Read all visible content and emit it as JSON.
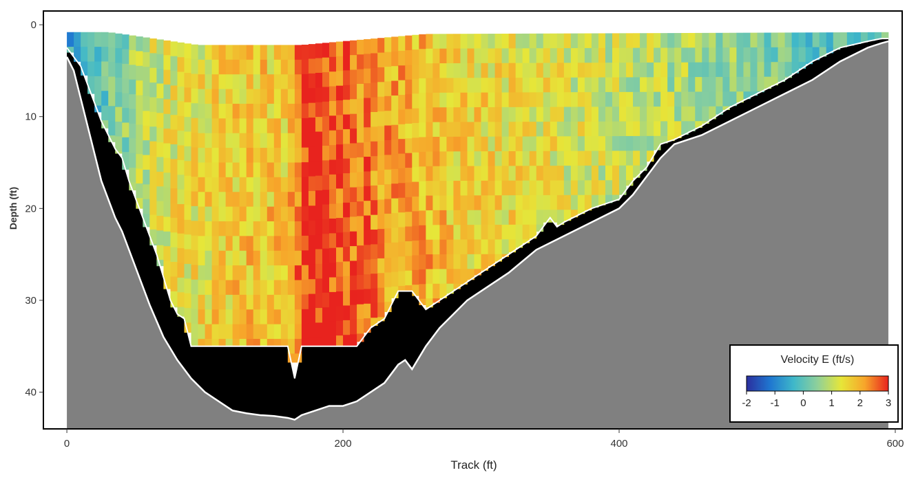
{
  "chart_data": {
    "type": "heatmap",
    "title": "",
    "xlabel": "Track (ft)",
    "ylabel": "Depth (ft)",
    "xlim": [
      -17,
      605
    ],
    "ylim_reversed": [
      -1.5,
      44
    ],
    "y_axis_reversed": true,
    "x_ticks": [
      0,
      200,
      400,
      600
    ],
    "y_ticks": [
      0,
      10,
      20,
      30,
      40
    ],
    "x_tick_labels": [
      "0",
      "200",
      "400",
      "600"
    ],
    "y_tick_labels": [
      "0",
      "10",
      "20",
      "30",
      "40"
    ],
    "grid": false,
    "colorbar": {
      "title": "Velocity E (ft/s)",
      "min": -2,
      "max": 3,
      "ticks": [
        -2,
        -1,
        0,
        1,
        2,
        3
      ],
      "tick_labels": [
        "-2",
        "-1",
        "0",
        "1",
        "2",
        "3"
      ],
      "colors": [
        "#2b2f9e",
        "#1f77d0",
        "#3fb8c9",
        "#8fd09a",
        "#e6e639",
        "#f7a52a",
        "#e8231e"
      ],
      "placement": "bottom-right"
    },
    "colors": {
      "riverbed": "#808080",
      "unmeasured_zone": "#000000",
      "bed_line": "#ffffff",
      "frame": "#000000"
    },
    "velocity_profile": {
      "description_units": "mean eastward velocity (ft/s) by track position",
      "x": [
        0,
        20,
        40,
        60,
        80,
        100,
        120,
        140,
        160,
        170,
        180,
        200,
        220,
        240,
        260,
        280,
        300,
        320,
        340,
        360,
        380,
        400,
        420,
        440,
        460,
        480,
        500,
        520,
        540,
        560,
        580,
        590
      ],
      "values": [
        -0.5,
        -0.2,
        0.4,
        1.0,
        1.3,
        1.4,
        1.6,
        1.7,
        1.6,
        2.7,
        2.9,
        2.6,
        2.3,
        2.0,
        1.9,
        1.6,
        1.5,
        1.4,
        1.3,
        1.2,
        1.1,
        1.0,
        0.9,
        0.8,
        0.7,
        0.6,
        0.4,
        0.2,
        0.0,
        -0.2,
        0.2,
        0.4
      ]
    },
    "measured_bottom": {
      "x": [
        0,
        5,
        10,
        15,
        20,
        25,
        30,
        35,
        40,
        45,
        50,
        55,
        60,
        65,
        70,
        75,
        80,
        85,
        90,
        95,
        100,
        110,
        120,
        130,
        140,
        150,
        160,
        165,
        170,
        175,
        180,
        190,
        200,
        210,
        220,
        230,
        240,
        250,
        260,
        270,
        280,
        290,
        300,
        310,
        320,
        330,
        340,
        350,
        355,
        360,
        380,
        400,
        410,
        420,
        430,
        440,
        460,
        480,
        500,
        520,
        540,
        560,
        580,
        590,
        595
      ],
      "depth": [
        2.5,
        3.5,
        4.5,
        6.5,
        8.5,
        10.5,
        12.0,
        13.5,
        14.5,
        17.0,
        19.0,
        21.0,
        23.0,
        25.0,
        27.5,
        30.0,
        31.5,
        32.0,
        35.0,
        35.0,
        35.0,
        35.0,
        35.0,
        35.0,
        35.0,
        35.0,
        35.0,
        38.5,
        35.0,
        35.0,
        35.0,
        35.0,
        35.0,
        35.0,
        33.0,
        32.0,
        29.0,
        29.0,
        31.0,
        30.0,
        29.0,
        28.0,
        27.0,
        26.0,
        25.0,
        24.0,
        23.0,
        21.0,
        22.0,
        21.5,
        20.0,
        19.0,
        17.0,
        15.5,
        13.0,
        12.5,
        11.0,
        9.0,
        7.5,
        6.0,
        4.0,
        2.5,
        1.8,
        1.5,
        1.5
      ]
    },
    "riverbed": {
      "x": [
        0,
        5,
        10,
        15,
        20,
        25,
        30,
        35,
        40,
        45,
        50,
        55,
        60,
        70,
        80,
        90,
        100,
        110,
        120,
        130,
        140,
        150,
        160,
        165,
        170,
        180,
        190,
        200,
        210,
        220,
        230,
        240,
        245,
        250,
        260,
        270,
        280,
        290,
        300,
        320,
        340,
        360,
        380,
        400,
        410,
        420,
        430,
        440,
        460,
        480,
        500,
        520,
        540,
        560,
        580,
        590,
        595
      ],
      "depth": [
        3.5,
        5.0,
        8.0,
        11.0,
        14.0,
        17.0,
        19.0,
        21.0,
        22.5,
        24.5,
        26.5,
        28.5,
        30.5,
        34.0,
        36.5,
        38.5,
        40.0,
        41.0,
        42.0,
        42.3,
        42.5,
        42.6,
        42.8,
        43.0,
        42.5,
        42.0,
        41.5,
        41.5,
        41.0,
        40.0,
        39.0,
        37.0,
        36.5,
        37.5,
        35.0,
        33.0,
        31.5,
        30.0,
        29.0,
        27.0,
        24.5,
        23.0,
        21.5,
        20.0,
        18.5,
        16.5,
        14.5,
        13.0,
        12.0,
        10.5,
        9.0,
        7.5,
        6.0,
        4.0,
        2.5,
        2.0,
        1.8
      ]
    },
    "near_surface": {
      "x": [
        0,
        30,
        40,
        95,
        170,
        260,
        440,
        600
      ],
      "depth": [
        0.8,
        0.8,
        1.0,
        2.2,
        2.2,
        1.0,
        0.9,
        0.8
      ]
    }
  }
}
